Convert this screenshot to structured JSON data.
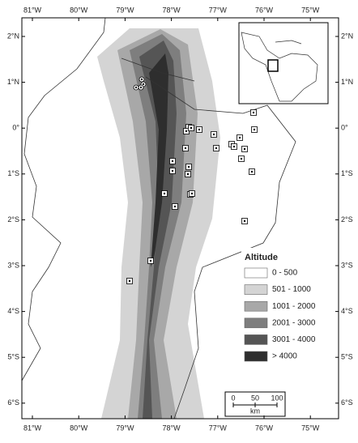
{
  "map": {
    "lon_labels": [
      "81°W",
      "80°W",
      "79°W",
      "78°W",
      "77°W",
      "76°W",
      "75°W"
    ],
    "lat_labels": [
      "2°N",
      "1°N",
      "0°",
      "1°S",
      "2°S",
      "3°S",
      "4°S",
      "5°S",
      "6°S"
    ],
    "legend": {
      "title": "Altitude",
      "items": [
        "0 - 500",
        "501 - 1000",
        "1001 - 2000",
        "2001 - 3000",
        "3001 - 4000",
        "> 4000"
      ]
    },
    "scale_bar": {
      "ticks": [
        "0",
        "50",
        "100"
      ],
      "unit": "km"
    }
  }
}
